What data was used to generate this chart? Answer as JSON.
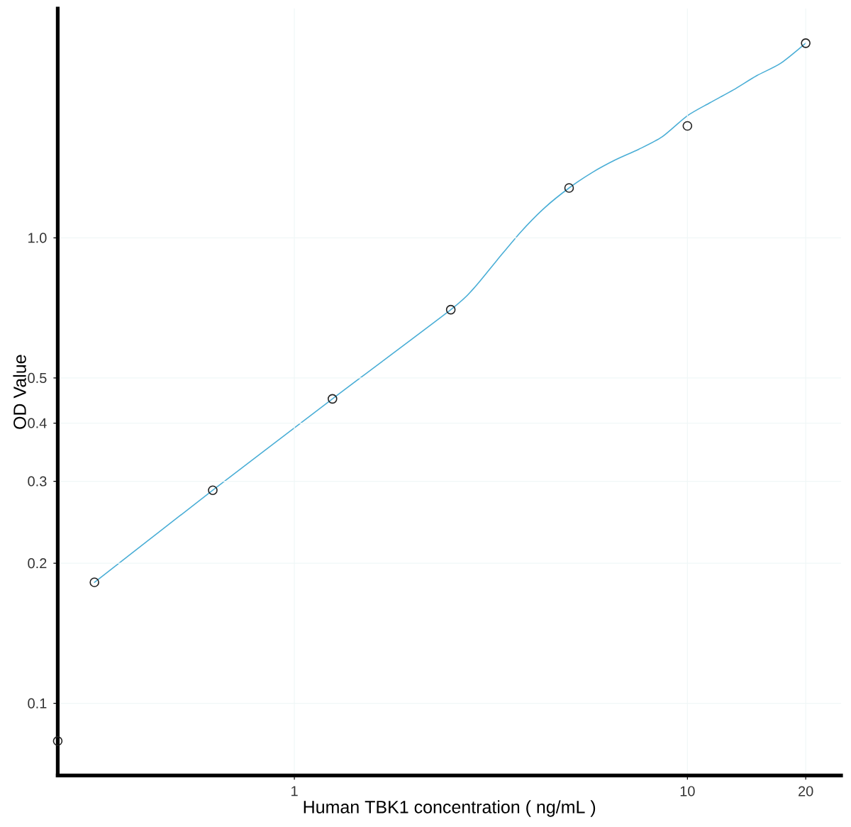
{
  "chart_data": {
    "type": "scatter",
    "xlabel": "Human TBK1 concentration ( ng/mL )",
    "ylabel": "OD Value",
    "log": "xy",
    "xlim": [
      0.25,
      24.6
    ],
    "ylim": [
      0.07,
      3.11
    ],
    "xticks": [
      1,
      10,
      20
    ],
    "yticks": [
      0.1,
      0.2,
      0.3,
      0.4,
      0.5,
      {
        "value": 1,
        "label": "1.0"
      }
    ],
    "grid": true,
    "series": [
      {
        "type": "line",
        "color": "#4aaed6",
        "line_style": "solid",
        "x": [
          0.31,
          0.62,
          1.25,
          2.5,
          2.86,
          3.28,
          3.77,
          4.33,
          5,
          5.71,
          6.55,
          7.52,
          8.64,
          10,
          11.4,
          13.1,
          15,
          17.25,
          20
        ],
        "values": [
          0.182,
          0.287,
          0.451,
          0.701,
          0.779,
          0.896,
          1.03,
          1.16,
          1.28,
          1.38,
          1.47,
          1.55,
          1.65,
          1.83,
          1.95,
          2.08,
          2.23,
          2.37,
          2.62
        ]
      },
      {
        "color": "#222222",
        "marker": "circle",
        "x": [
          0.25,
          0.31,
          0.62,
          1.25,
          2.5,
          5,
          10,
          20
        ],
        "values": [
          0.083,
          0.182,
          0.287,
          0.451,
          0.701,
          1.28,
          1.74,
          2.62
        ]
      }
    ]
  }
}
